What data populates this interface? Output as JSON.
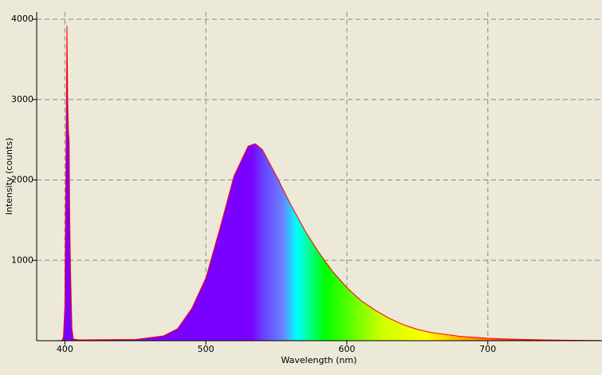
{
  "chart_data": {
    "type": "area",
    "x_label": "Wavelength (nm)",
    "y_label": "Intensity (counts)",
    "x": [
      395,
      398,
      399,
      400,
      400.5,
      401,
      401.5,
      402,
      402.5,
      403,
      403.5,
      404,
      405,
      406,
      410,
      450,
      470,
      480,
      490,
      500,
      510,
      520,
      530,
      535,
      540,
      550,
      560,
      570,
      580,
      590,
      600,
      610,
      620,
      630,
      640,
      650,
      660,
      680,
      700,
      720,
      740,
      760,
      780
    ],
    "series": [
      {
        "color": "#ff0000",
        "values": [
          0,
          5,
          50,
          450,
          1600,
          2700,
          3920,
          3000,
          2600,
          2500,
          1500,
          900,
          150,
          20,
          10,
          15,
          60,
          150,
          400,
          780,
          1400,
          2050,
          2420,
          2450,
          2380,
          2050,
          1700,
          1380,
          1100,
          860,
          660,
          500,
          380,
          280,
          200,
          140,
          100,
          55,
          30,
          18,
          10,
          5,
          3
        ]
      }
    ],
    "xlim": [
      380,
      781
    ],
    "ylim": [
      0,
      4090
    ],
    "xticks": [
      400,
      500,
      600,
      700
    ],
    "yticks": [
      1000,
      2000,
      3000,
      4000
    ],
    "grid": true
  }
}
